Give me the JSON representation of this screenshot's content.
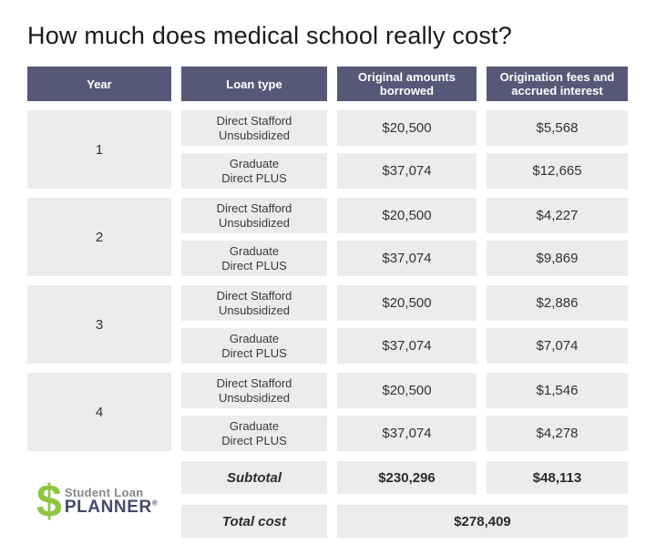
{
  "title": "How much does medical school really cost?",
  "colors": {
    "header_bg": "#575877",
    "cell_bg": "#ececec",
    "logo_green": "#8dc63f",
    "logo_navy": "#45496b",
    "logo_gray": "#85878a"
  },
  "table": {
    "headers": {
      "year": "Year",
      "loan_type": "Loan type",
      "borrowed": "Original amounts\nborrowed",
      "fees": "Origination fees and\naccrued interest"
    },
    "years": [
      {
        "year": "1",
        "rows": [
          {
            "loan_type": "Direct Stafford\nUnsubsidized",
            "borrowed": "$20,500",
            "fees": "$5,568"
          },
          {
            "loan_type": "Graduate\nDirect PLUS",
            "borrowed": "$37,074",
            "fees": "$12,665"
          }
        ]
      },
      {
        "year": "2",
        "rows": [
          {
            "loan_type": "Direct Stafford\nUnsubsidized",
            "borrowed": "$20,500",
            "fees": "$4,227"
          },
          {
            "loan_type": "Graduate\nDirect PLUS",
            "borrowed": "$37,074",
            "fees": "$9,869"
          }
        ]
      },
      {
        "year": "3",
        "rows": [
          {
            "loan_type": "Direct Stafford\nUnsubsidized",
            "borrowed": "$20,500",
            "fees": "$2,886"
          },
          {
            "loan_type": "Graduate\nDirect PLUS",
            "borrowed": "$37,074",
            "fees": "$7,074"
          }
        ]
      },
      {
        "year": "4",
        "rows": [
          {
            "loan_type": "Direct Stafford\nUnsubsidized",
            "borrowed": "$20,500",
            "fees": "$1,546"
          },
          {
            "loan_type": "Graduate\nDirect PLUS",
            "borrowed": "$37,074",
            "fees": "$4,278"
          }
        ]
      }
    ],
    "subtotal": {
      "label": "Subtotal",
      "borrowed": "$230,296",
      "fees": "$48,113"
    },
    "total": {
      "label": "Total cost",
      "value": "$278,409"
    }
  },
  "logo": {
    "symbol": "$",
    "line1": "Student Loan",
    "line2": "PLANNER",
    "reg": "®"
  },
  "chart_data": {
    "type": "table",
    "title": "How much does medical school really cost?",
    "columns": [
      "Year",
      "Loan type",
      "Original amounts borrowed",
      "Origination fees and accrued interest"
    ],
    "rows": [
      [
        "1",
        "Direct Stafford Unsubsidized",
        20500,
        5568
      ],
      [
        "1",
        "Graduate Direct PLUS",
        37074,
        12665
      ],
      [
        "2",
        "Direct Stafford Unsubsidized",
        20500,
        4227
      ],
      [
        "2",
        "Graduate Direct PLUS",
        37074,
        9869
      ],
      [
        "3",
        "Direct Stafford Unsubsidized",
        20500,
        2886
      ],
      [
        "3",
        "Graduate Direct PLUS",
        37074,
        7074
      ],
      [
        "4",
        "Direct Stafford Unsubsidized",
        20500,
        1546
      ],
      [
        "4",
        "Graduate Direct PLUS",
        37074,
        4278
      ]
    ],
    "subtotal": {
      "original_amounts_borrowed": 230296,
      "origination_fees_and_accrued_interest": 48113
    },
    "total_cost": 278409
  }
}
